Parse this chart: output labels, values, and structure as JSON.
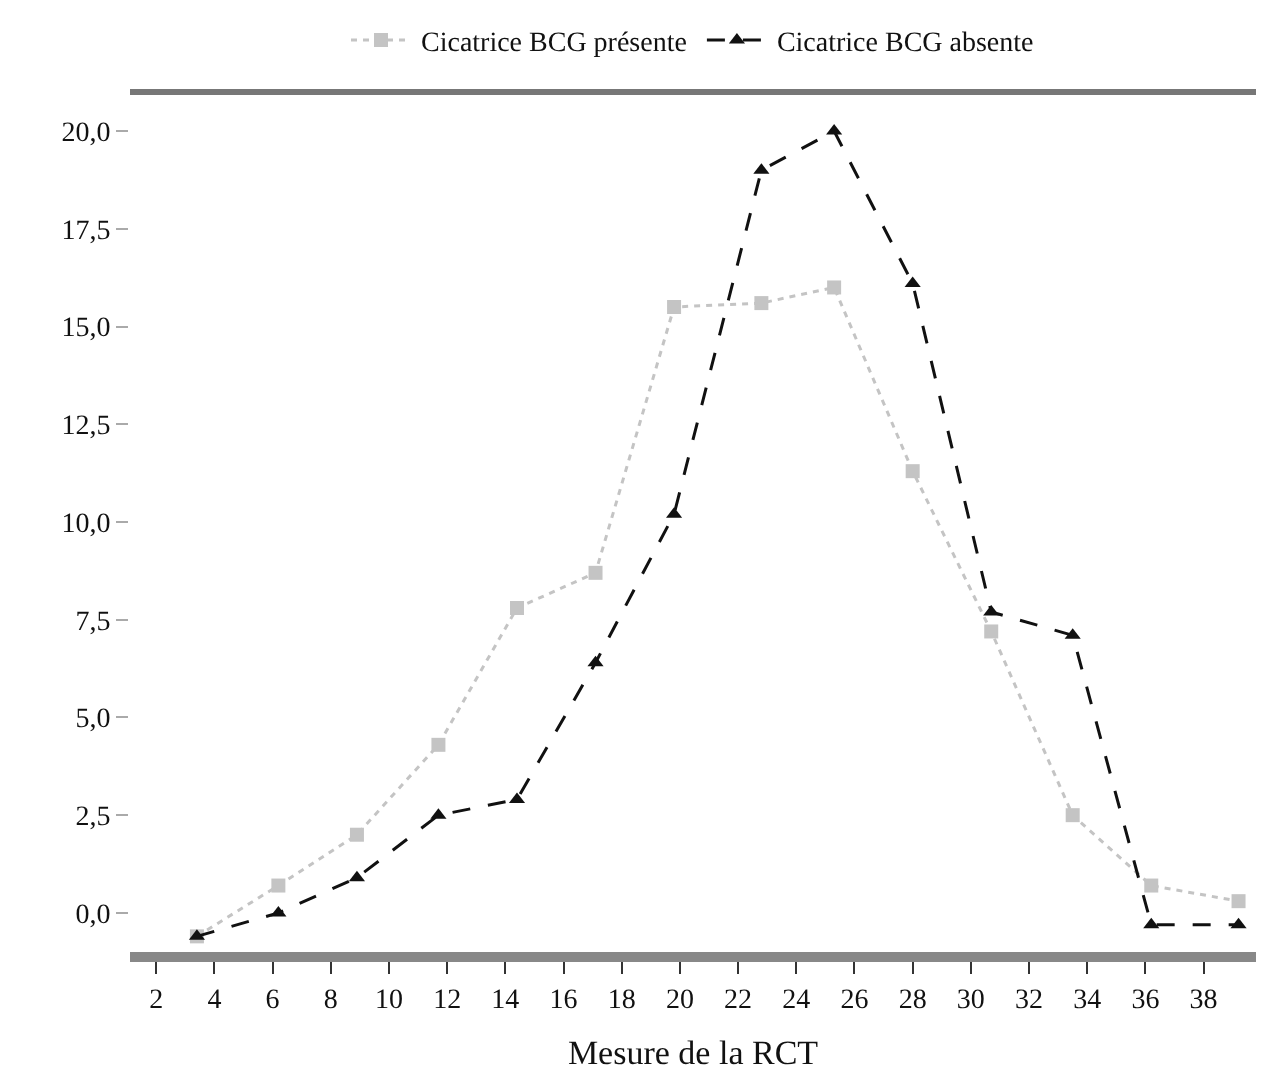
{
  "chart_data": {
    "type": "line",
    "xlabel": "Mesure de la RCT",
    "x": [
      3.4,
      6.2,
      8.9,
      11.7,
      14.4,
      17.1,
      19.8,
      22.8,
      25.3,
      28.0,
      30.7,
      33.5,
      36.2,
      39.2
    ],
    "series": [
      {
        "name": "Cicatrice BCG présente",
        "color": "#c4c4c4",
        "marker": "square",
        "line_style": "dotted",
        "values": [
          -0.6,
          0.7,
          2.0,
          4.3,
          7.8,
          8.7,
          15.5,
          15.6,
          16.0,
          11.3,
          7.2,
          2.5,
          0.7,
          0.3
        ]
      },
      {
        "name": "Cicatrice BCG absente",
        "color": "#111111",
        "marker": "triangle",
        "line_style": "dashed",
        "values": [
          -0.6,
          0.0,
          0.9,
          2.5,
          2.9,
          6.4,
          10.2,
          19.0,
          20.0,
          16.1,
          7.7,
          7.1,
          -0.3,
          -0.3
        ]
      }
    ],
    "xlim": [
      1.1,
      39.8
    ],
    "xticks": [
      2,
      4,
      6,
      8,
      10,
      12,
      14,
      16,
      18,
      20,
      22,
      24,
      26,
      28,
      30,
      32,
      34,
      36,
      38
    ],
    "ylim": [
      -1.0,
      21.0
    ],
    "yticks": [
      {
        "value": 0,
        "label": "0,0"
      },
      {
        "value": 2.5,
        "label": "2,5"
      },
      {
        "value": 5,
        "label": "5,0"
      },
      {
        "value": 7.5,
        "label": "7,5"
      },
      {
        "value": 10,
        "label": "10,0"
      },
      {
        "value": 12.5,
        "label": "12,5"
      },
      {
        "value": 15,
        "label": "15,0"
      },
      {
        "value": 17.5,
        "label": "17,5"
      },
      {
        "value": 20,
        "label": "20,0"
      }
    ],
    "grid": false,
    "legend": "top"
  }
}
